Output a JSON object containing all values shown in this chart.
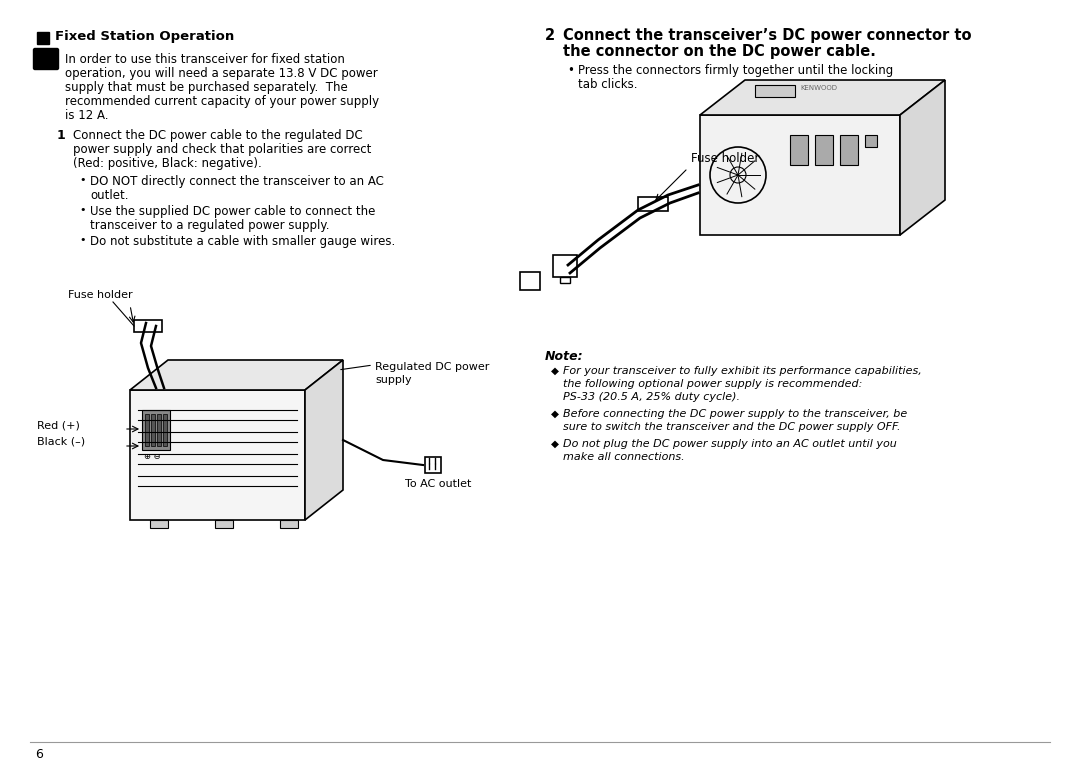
{
  "bg_color": "#ffffff",
  "text_color": "#000000",
  "page_number": "6",
  "section_title": "Fixed Station Operation",
  "intro_text": "In order to use this transceiver for fixed station\noperation, you will need a separate 13.8 V DC power\nsupply that must be purchased separately.  The\nrecommended current capacity of your power supply\nis 12 A.",
  "step1_num": "1",
  "step1_text": "Connect the DC power cable to the regulated DC\npower supply and check that polarities are correct\n(Red: positive, Black: negative).",
  "bullet1a": "DO NOT directly connect the transceiver to an AC\noutlet.",
  "bullet1b": "Use the supplied DC power cable to connect the\ntransceiver to a regulated power supply.",
  "bullet1c": "Do not substitute a cable with smaller gauge wires.",
  "step2_num": "2",
  "step2_text": "Connect the transceiver’s DC power connector to\nthe connector on the DC power cable.",
  "bullet2a": "Press the connectors firmly together until the locking\ntab clicks.",
  "label_fuse1": "Fuse holder",
  "label_regulated": "Regulated DC power\nsupply",
  "label_red": "Red (+)",
  "label_black": "Black (–)",
  "label_ac": "To AC outlet",
  "label_fuse2": "Fuse holder",
  "note_title": "Note:",
  "note1": "For your transceiver to fully exhibit its performance capabilities,\nthe following optional power supply is recommended:\nPS-33 (20.5 A, 25% duty cycle).",
  "note2": "Before connecting the DC power supply to the transceiver, be\nsure to switch the transceiver and the DC power supply OFF.",
  "note3": "Do not plug the DC power supply into an AC outlet until you\nmake all connections."
}
